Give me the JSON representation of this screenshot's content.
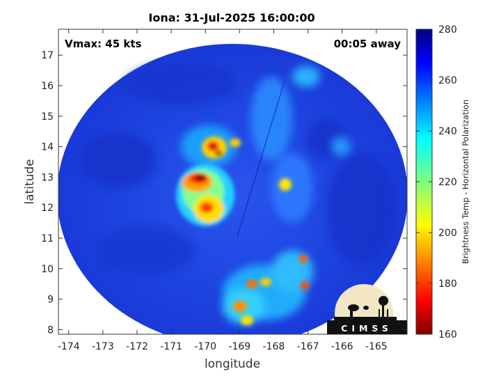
{
  "title": "Iona: 31-Jul-2025 16:00:00",
  "vmax_label": "Vmax: 45 kts",
  "time_away_label": "00:05 away",
  "xlabel": "longitude",
  "ylabel": "latitude",
  "x_ticks": [
    "-174",
    "-173",
    "-172",
    "-171",
    "-170",
    "-169",
    "-168",
    "-167",
    "-166",
    "-165"
  ],
  "y_ticks": [
    "8",
    "9",
    "10",
    "11",
    "12",
    "13",
    "14",
    "15",
    "16",
    "17"
  ],
  "colorbar": {
    "label": "Brightness Temp - Horizontal Polarization",
    "ticks": [
      "160",
      "180",
      "200",
      "220",
      "240",
      "260",
      "280"
    ],
    "range": [
      160,
      280
    ],
    "colormap": "jet"
  },
  "logo_text": "CIMSS",
  "colors": {
    "background_swath": "#1e3fe0",
    "cold_core": "#7a0000",
    "convection": "#ff3b00"
  }
}
